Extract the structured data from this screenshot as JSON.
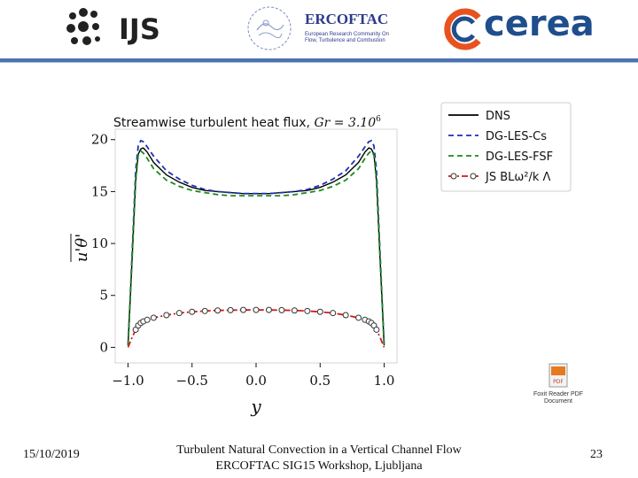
{
  "header": {
    "ijs_logo_text": "IJS",
    "ercoftac_title": "ERCOFTAC",
    "ercoftac_subtitle": "European Research Community On Flow, Turbulence and Combustion",
    "cerea_logo_text": "cerea"
  },
  "chart_data": {
    "type": "line",
    "title": "Streamwise turbulent heat flux, Gr = 3.10^6",
    "title_prefix": "Streamwise turbulent heat flux, ",
    "title_math": "Gr = 3.10",
    "title_exp": "6",
    "xlabel": "y",
    "ylabel": "u'θ'",
    "xlim": [
      -1.1,
      1.1
    ],
    "ylim": [
      -1.5,
      21
    ],
    "xticks": [
      -1.0,
      -0.5,
      0.0,
      0.5,
      1.0
    ],
    "xtick_labels": [
      "−1.0",
      "−0.5",
      "0.0",
      "0.5",
      "1.0"
    ],
    "yticks": [
      0,
      5,
      10,
      15,
      20
    ],
    "ytick_labels": [
      "0",
      "5",
      "10",
      "15",
      "20"
    ],
    "grid": false,
    "legend_position": "right",
    "x": [
      -1.0,
      -0.97,
      -0.94,
      -0.92,
      -0.9,
      -0.88,
      -0.85,
      -0.8,
      -0.7,
      -0.6,
      -0.5,
      -0.4,
      -0.3,
      -0.2,
      -0.1,
      0.0,
      0.1,
      0.2,
      0.3,
      0.4,
      0.5,
      0.6,
      0.7,
      0.8,
      0.85,
      0.88,
      0.9,
      0.92,
      0.94,
      0.97,
      1.0
    ],
    "series": [
      {
        "name": "DNS",
        "color": "#000000",
        "dash": "solid",
        "marker": "none",
        "values": [
          0.2,
          8.0,
          16.0,
          18.6,
          19.1,
          19.2,
          18.8,
          17.8,
          16.6,
          15.9,
          15.4,
          15.1,
          15.0,
          14.9,
          14.8,
          14.8,
          14.8,
          14.9,
          15.0,
          15.1,
          15.4,
          15.9,
          16.6,
          17.8,
          18.8,
          19.2,
          19.1,
          18.6,
          16.0,
          8.0,
          0.2
        ]
      },
      {
        "name": "DG-LES-Cs",
        "color": "#1f2fb3",
        "dash": "dashed",
        "marker": "none",
        "values": [
          0.2,
          8.5,
          17.0,
          19.4,
          19.9,
          19.8,
          19.3,
          18.4,
          17.0,
          16.2,
          15.6,
          15.2,
          15.0,
          14.9,
          14.8,
          14.8,
          14.8,
          14.9,
          15.0,
          15.2,
          15.6,
          16.2,
          17.0,
          18.4,
          19.3,
          19.8,
          19.9,
          19.4,
          17.0,
          8.5,
          0.2
        ]
      },
      {
        "name": "DG-LES-FSF",
        "color": "#1b8a1b",
        "dash": "dashed",
        "marker": "none",
        "values": [
          0.2,
          8.0,
          16.2,
          18.5,
          18.9,
          18.7,
          18.2,
          17.2,
          16.1,
          15.5,
          15.1,
          14.9,
          14.7,
          14.6,
          14.6,
          14.6,
          14.6,
          14.6,
          14.7,
          14.9,
          15.1,
          15.5,
          16.1,
          17.2,
          18.2,
          18.7,
          18.9,
          18.5,
          16.2,
          8.0,
          0.2
        ]
      },
      {
        "name": "JS BLω²/k Λ",
        "color": "#d11a1a",
        "dash": "dashdot",
        "marker": "open-circle",
        "values": [
          0.0,
          0.9,
          1.7,
          2.1,
          2.35,
          2.5,
          2.65,
          2.85,
          3.1,
          3.3,
          3.42,
          3.5,
          3.55,
          3.58,
          3.6,
          3.6,
          3.6,
          3.58,
          3.55,
          3.5,
          3.42,
          3.3,
          3.1,
          2.85,
          2.65,
          2.5,
          2.35,
          2.1,
          1.7,
          0.9,
          0.0
        ]
      }
    ],
    "legend_labels": [
      "DNS",
      "DG-LES-Cs",
      "DG-LES-FSF",
      "JS BLω²/k Λ"
    ]
  },
  "pdf_icon": {
    "badge": "PDF",
    "label_line1": "Foxit Reader PDF",
    "label_line2": "Document"
  },
  "footer": {
    "date": "15/10/2019",
    "line1": "Turbulent Natural Convection in a Vertical Channel Flow",
    "line2": "ERCOFTAC SIG15 Workshop, Ljubljana",
    "page_number": "23"
  }
}
